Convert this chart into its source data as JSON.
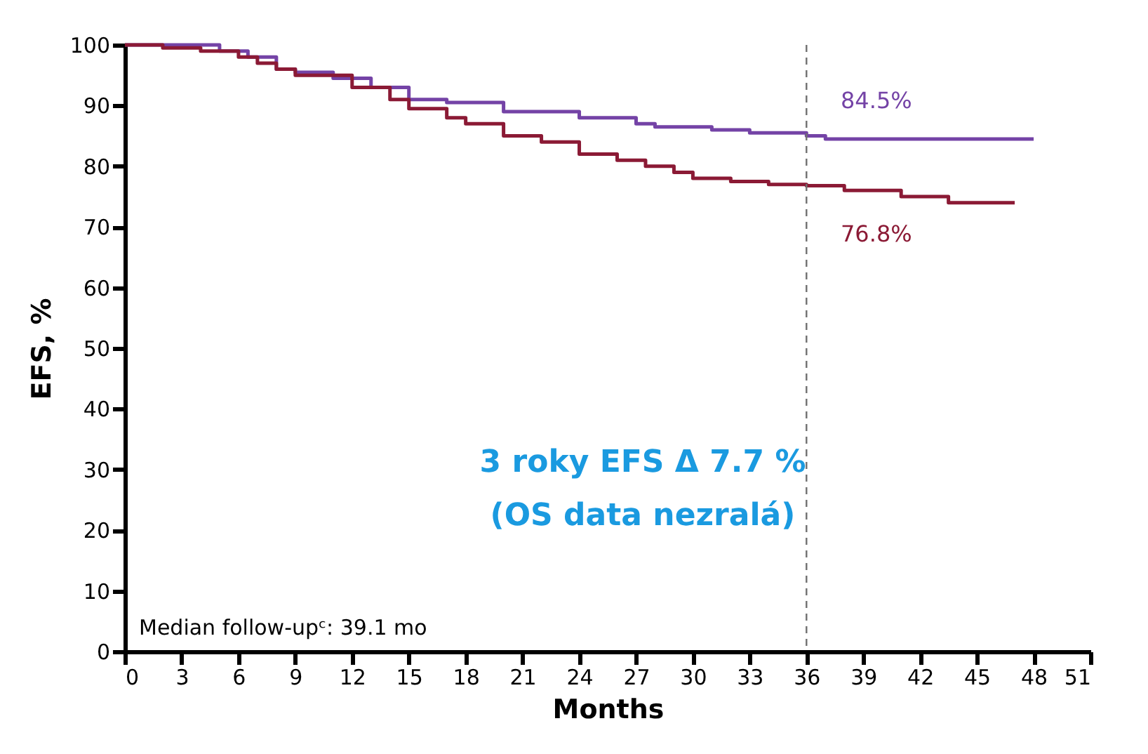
{
  "chart_data": {
    "type": "step",
    "xlabel": "Months",
    "ylabel": "EFS, %",
    "series": [
      {
        "color": "#7443a6",
        "x": [
          0,
          5,
          6.5,
          8,
          9,
          11,
          13,
          15,
          17,
          20,
          24,
          27,
          28,
          31,
          33,
          36,
          37,
          48
        ],
        "values": [
          100,
          99,
          98,
          96,
          95.5,
          94.5,
          93,
          91,
          90.5,
          89,
          88,
          87,
          86.5,
          86,
          85.5,
          85,
          84.5,
          84.5
        ]
      },
      {
        "color": "#8b1a35",
        "x": [
          0,
          2,
          4,
          6,
          7,
          8,
          9,
          12,
          14,
          15,
          17,
          18,
          20,
          22,
          24,
          26,
          27.5,
          29,
          30,
          32,
          34,
          36,
          38,
          41,
          43.5,
          47
        ],
        "values": [
          100,
          99.5,
          99,
          98,
          97,
          96,
          95,
          93,
          91,
          89.5,
          88,
          87,
          85,
          84,
          82,
          81,
          80,
          79,
          78,
          77.5,
          77,
          76.8,
          76,
          75,
          74,
          74
        ]
      }
    ],
    "xlim": [
      0,
      51
    ],
    "xticks": [
      0,
      3,
      6,
      9,
      12,
      15,
      18,
      21,
      24,
      27,
      30,
      33,
      36,
      39,
      42,
      45,
      48,
      51
    ],
    "ylim": [
      0,
      100
    ],
    "yticks": [
      0,
      10,
      20,
      30,
      40,
      50,
      60,
      70,
      80,
      90,
      100
    ],
    "grid": false,
    "ref_lines": [
      {
        "axis": "x",
        "value": 36,
        "line_style": "dashed",
        "color": "#707070"
      }
    ],
    "annotations": [
      "84.5%",
      "76.8%",
      "3 roky EFS Δ 7.7 %",
      "(OS data nezralá)",
      "Median follow-upᶜ: 39.1 mo"
    ]
  }
}
